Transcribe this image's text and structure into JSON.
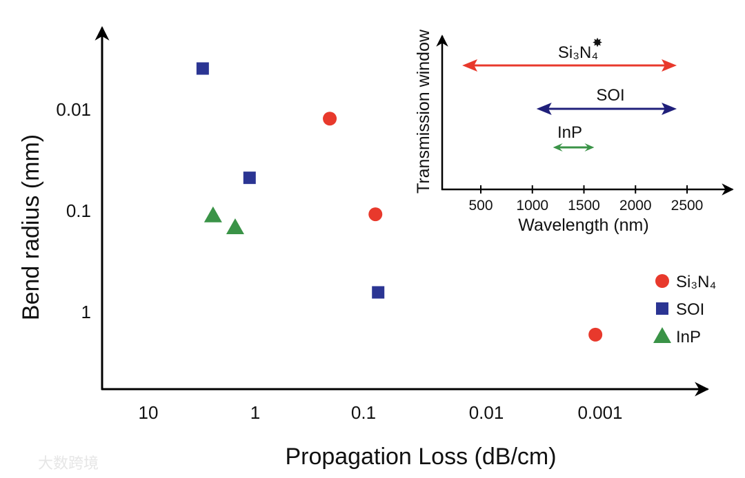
{
  "chart_data": [
    {
      "type": "scatter",
      "title": "",
      "xlabel": "Propagation Loss (dB/cm)",
      "ylabel": "Bend radius (mm)",
      "xscale": "log",
      "x_reversed": true,
      "yscale": "log",
      "y_reversed": true,
      "xlim": [
        20,
        0.0005
      ],
      "ylim": [
        0.003,
        5
      ],
      "xticks": [
        {
          "v": 10,
          "label": "10"
        },
        {
          "v": 1,
          "label": "1"
        },
        {
          "v": 0.1,
          "label": "0.1"
        },
        {
          "v": 0.01,
          "label": "0.01"
        },
        {
          "v": 0.001,
          "label": "0.001"
        }
      ],
      "yticks": [
        {
          "v": 0.01,
          "label": "0.01"
        },
        {
          "v": 0.1,
          "label": "0.1"
        },
        {
          "v": 1,
          "label": "1"
        }
      ],
      "legend_position": "right",
      "series": [
        {
          "name": "Si₃N₄",
          "marker": "circle",
          "color": "#e8392c",
          "points": [
            {
              "x": 0.205,
              "y": 0.0125
            },
            {
              "x": 0.08,
              "y": 0.11
            },
            {
              "x": 0.0011,
              "y": 1.7
            }
          ]
        },
        {
          "name": "SOI",
          "marker": "square",
          "color": "#2b3593",
          "points": [
            {
              "x": 3.1,
              "y": 0.004
            },
            {
              "x": 1.13,
              "y": 0.048
            },
            {
              "x": 0.076,
              "y": 0.65
            }
          ]
        },
        {
          "name": "InP",
          "marker": "triangle",
          "color": "#3a9347",
          "points": [
            {
              "x": 2.48,
              "y": 0.113
            },
            {
              "x": 1.54,
              "y": 0.148
            }
          ]
        }
      ]
    },
    {
      "type": "range",
      "title": "",
      "xlabel": "Wavelength (nm)",
      "ylabel": "Transmission window",
      "xlim": [
        0,
        2900
      ],
      "xticks": [
        500,
        1000,
        1500,
        2000,
        2500
      ],
      "series": [
        {
          "name": "Si₃N₄",
          "note": "✸",
          "color": "#e8392c",
          "range": [
            320,
            2400
          ]
        },
        {
          "name": "SOI",
          "color": "#1f1f7a",
          "range": [
            1040,
            2400
          ]
        },
        {
          "name": "InP",
          "color": "#3a9347",
          "range": [
            1200,
            1600
          ]
        }
      ]
    }
  ],
  "watermark": "大数跨境"
}
